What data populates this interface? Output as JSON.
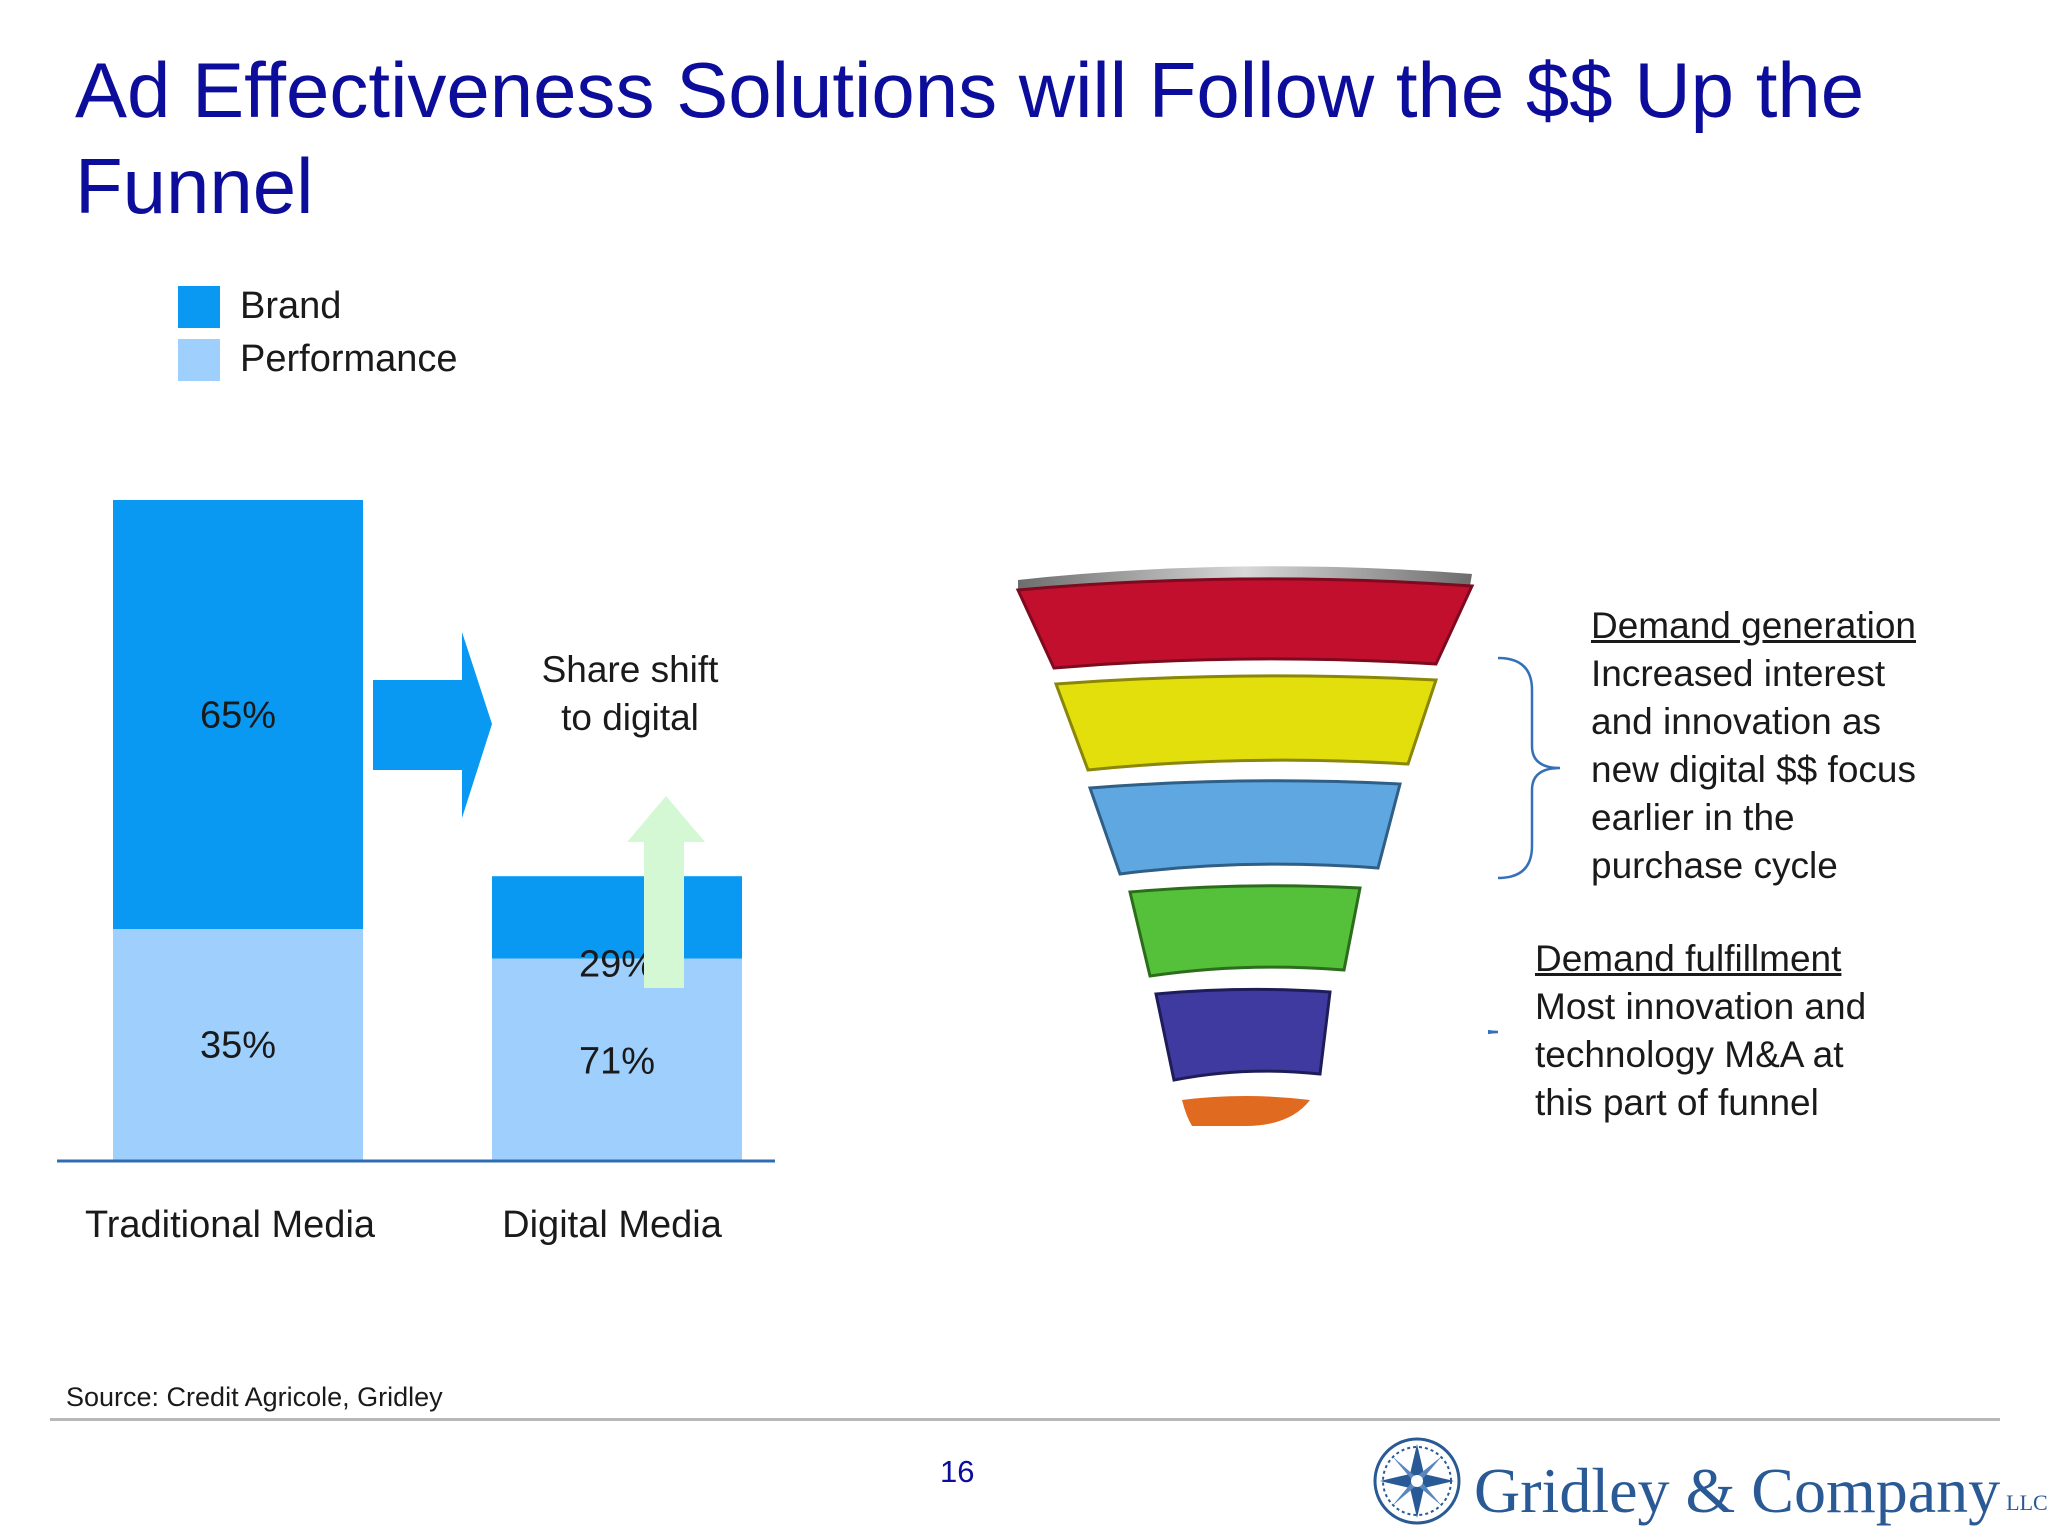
{
  "slide": {
    "title": "Ad Effectiveness Solutions will Follow the $$ Up the Funnel",
    "source": "Source: Credit Agricole, Gridley",
    "page_number": "16",
    "logo_text": "Gridley & Company",
    "logo_suffix": "LLC"
  },
  "chart_data": {
    "type": "bar",
    "stacked": true,
    "categories": [
      "Traditional Media",
      "Digital Media"
    ],
    "series": [
      {
        "name": "Brand",
        "values": [
          65,
          29
        ],
        "labels": [
          "65%",
          "29%"
        ],
        "color": "#0a99f2"
      },
      {
        "name": "Performance",
        "values": [
          35,
          71
        ],
        "labels": [
          "35%",
          "71%"
        ],
        "color": "#9fcffd"
      }
    ],
    "relative_totals": [
      100,
      43
    ],
    "legend": "top-left",
    "grid": false
  },
  "annotation": {
    "share_shift": [
      "Share shift",
      "to digital"
    ],
    "arrow_right_color": "#0a99f2",
    "arrow_up_color": "#d4f8d4"
  },
  "funnel": {
    "layers": [
      {
        "color": "#c20f2e"
      },
      {
        "color": "#e3df0c"
      },
      {
        "color": "#5fa7e0"
      },
      {
        "color": "#55c03a"
      },
      {
        "color": "#3f3aa0"
      },
      {
        "color": "#e06a1f"
      }
    ],
    "rim_color": "#8a8a8a"
  },
  "callouts": {
    "generation": {
      "heading": "Demand generation",
      "lines": [
        "Increased interest",
        "and innovation as",
        "new digital $$ focus",
        "earlier in the",
        "purchase cycle"
      ]
    },
    "fulfillment": {
      "heading": "Demand fulfillment",
      "lines": [
        "Most innovation and",
        "technology M&A at",
        "this part of funnel"
      ]
    }
  }
}
